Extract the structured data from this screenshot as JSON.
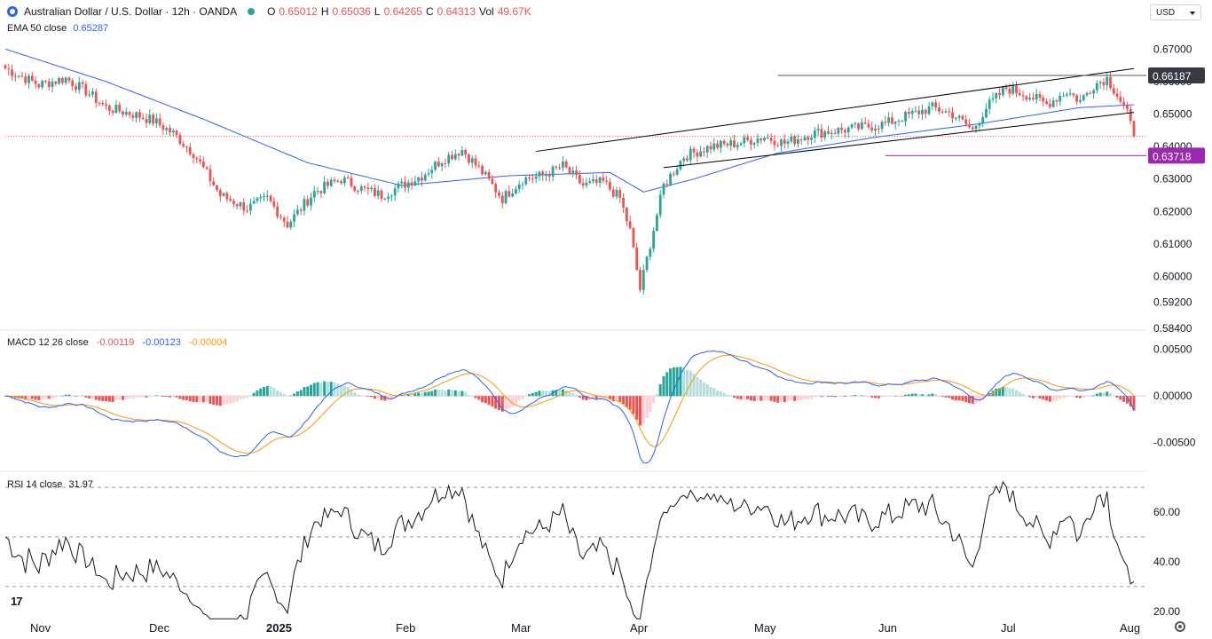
{
  "header": {
    "symbol": "Australian Dollar / U.S. Dollar · 12h · OANDA",
    "o_label": "O",
    "o_value": "0.65012",
    "h_label": "H",
    "h_value": "0.65036",
    "l_label": "L",
    "l_value": "0.64265",
    "c_label": "C",
    "c_value": "0.64313",
    "vol_label": "Vol",
    "vol_value": "49.67K",
    "ema_label": "EMA 50 close",
    "ema_value": "0.65287",
    "currency": "USD",
    "logo_text": "17"
  },
  "colors": {
    "up": "#26a69a",
    "down": "#ef5350",
    "ema": "#2962ff",
    "signal": "#ff9800",
    "rsi": "#131722",
    "support": "#9c27b0"
  },
  "chart_data": [
    {
      "type": "candlestick",
      "title": "Australian Dollar / U.S. Dollar · 12h · OANDA",
      "ylim": [
        0.584,
        0.675
      ],
      "yticks": [
        "0.67000",
        "0.66000",
        "0.65000",
        "0.64000",
        "0.63000",
        "0.62000",
        "0.61000",
        "0.60000",
        "0.59200",
        "0.58400"
      ],
      "xticks": [
        "Nov",
        "Dec",
        "2025",
        "Feb",
        "Mar",
        "Apr",
        "May",
        "Jun",
        "Jul",
        "Aug"
      ],
      "price_labels": [
        {
          "text": "0.66187",
          "value": 0.66187
        },
        {
          "text": "0.63718",
          "value": 0.63718
        }
      ],
      "close_keypoints": [
        {
          "i": 0,
          "v": 0.664
        },
        {
          "i": 10,
          "v": 0.659
        },
        {
          "i": 18,
          "v": 0.661
        },
        {
          "i": 24,
          "v": 0.657
        },
        {
          "i": 30,
          "v": 0.652
        },
        {
          "i": 38,
          "v": 0.65
        },
        {
          "i": 44,
          "v": 0.648
        },
        {
          "i": 50,
          "v": 0.644
        },
        {
          "i": 56,
          "v": 0.638
        },
        {
          "i": 64,
          "v": 0.625
        },
        {
          "i": 72,
          "v": 0.621
        },
        {
          "i": 78,
          "v": 0.624
        },
        {
          "i": 84,
          "v": 0.616
        },
        {
          "i": 92,
          "v": 0.626
        },
        {
          "i": 100,
          "v": 0.63
        },
        {
          "i": 106,
          "v": 0.627
        },
        {
          "i": 112,
          "v": 0.625
        },
        {
          "i": 118,
          "v": 0.628
        },
        {
          "i": 124,
          "v": 0.631
        },
        {
          "i": 130,
          "v": 0.636
        },
        {
          "i": 136,
          "v": 0.639
        },
        {
          "i": 142,
          "v": 0.632
        },
        {
          "i": 148,
          "v": 0.624
        },
        {
          "i": 154,
          "v": 0.63
        },
        {
          "i": 160,
          "v": 0.631
        },
        {
          "i": 166,
          "v": 0.634
        },
        {
          "i": 172,
          "v": 0.628
        },
        {
          "i": 178,
          "v": 0.629
        },
        {
          "i": 183,
          "v": 0.624
        },
        {
          "i": 186,
          "v": 0.614
        },
        {
          "i": 189,
          "v": 0.596
        },
        {
          "i": 192,
          "v": 0.61
        },
        {
          "i": 196,
          "v": 0.628
        },
        {
          "i": 202,
          "v": 0.637
        },
        {
          "i": 210,
          "v": 0.64
        },
        {
          "i": 218,
          "v": 0.641
        },
        {
          "i": 226,
          "v": 0.643
        },
        {
          "i": 232,
          "v": 0.641
        },
        {
          "i": 240,
          "v": 0.644
        },
        {
          "i": 248,
          "v": 0.645
        },
        {
          "i": 256,
          "v": 0.646
        },
        {
          "i": 262,
          "v": 0.647
        },
        {
          "i": 270,
          "v": 0.65
        },
        {
          "i": 276,
          "v": 0.652
        },
        {
          "i": 282,
          "v": 0.65
        },
        {
          "i": 288,
          "v": 0.645
        },
        {
          "i": 292,
          "v": 0.652
        },
        {
          "i": 298,
          "v": 0.658
        },
        {
          "i": 304,
          "v": 0.656
        },
        {
          "i": 310,
          "v": 0.653
        },
        {
          "i": 316,
          "v": 0.657
        },
        {
          "i": 320,
          "v": 0.654
        },
        {
          "i": 324,
          "v": 0.659
        },
        {
          "i": 328,
          "v": 0.661
        },
        {
          "i": 331,
          "v": 0.656
        },
        {
          "i": 334,
          "v": 0.65
        },
        {
          "i": 336,
          "v": 0.64313
        }
      ],
      "ema_keypoints": [
        {
          "i": 0,
          "v": 0.67
        },
        {
          "i": 30,
          "v": 0.66
        },
        {
          "i": 60,
          "v": 0.648
        },
        {
          "i": 90,
          "v": 0.635
        },
        {
          "i": 118,
          "v": 0.628
        },
        {
          "i": 150,
          "v": 0.631
        },
        {
          "i": 180,
          "v": 0.632
        },
        {
          "i": 190,
          "v": 0.626
        },
        {
          "i": 205,
          "v": 0.63
        },
        {
          "i": 230,
          "v": 0.638
        },
        {
          "i": 260,
          "v": 0.643
        },
        {
          "i": 290,
          "v": 0.647
        },
        {
          "i": 320,
          "v": 0.652
        },
        {
          "i": 336,
          "v": 0.65287
        }
      ],
      "channel_upper": [
        {
          "i": 158,
          "v": 0.6385
        },
        {
          "i": 336,
          "v": 0.664
        }
      ],
      "channel_lower": [
        {
          "i": 196,
          "v": 0.6335
        },
        {
          "i": 336,
          "v": 0.6505
        }
      ],
      "resistance": {
        "from": 230,
        "to": 336,
        "v": 0.66187
      },
      "support": {
        "from": 262,
        "to": 336,
        "v": 0.63718
      }
    },
    {
      "type": "line",
      "title": "MACD 12 26 close",
      "legend": [
        "-0.00119",
        "-0.00123",
        "-0.00004"
      ],
      "ylim": [
        -0.0078,
        0.0065
      ],
      "yticks": [
        "0.00500",
        "0.00000",
        "-0.00500"
      ]
    },
    {
      "type": "line",
      "title": "RSI 14 close",
      "value": "31.97",
      "ylim": [
        16,
        74
      ],
      "yticks": [
        "60.00",
        "40.00",
        "20.00"
      ],
      "bands": [
        70,
        50,
        30
      ]
    }
  ]
}
